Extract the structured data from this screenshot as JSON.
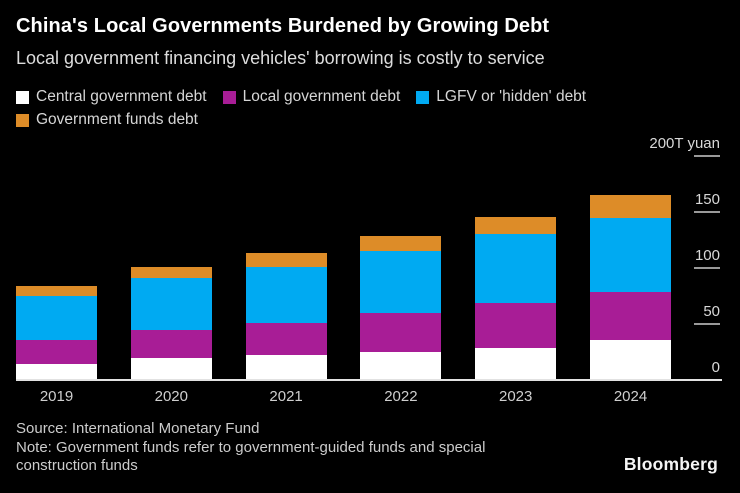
{
  "header": {
    "title": "China's Local Governments Burdened by Growing Debt",
    "subtitle": "Local government financing vehicles' borrowing is costly to service"
  },
  "legend": [
    {
      "label": "Central government debt",
      "color": "#ffffff"
    },
    {
      "label": "Local government debt",
      "color": "#a81d96"
    },
    {
      "label": "LGFV or 'hidden' debt",
      "color": "#00aaf2"
    },
    {
      "label": "Government funds debt",
      "color": "#dd8c28"
    }
  ],
  "chart_data": {
    "type": "bar",
    "stacked": true,
    "title": "China's Local Governments Burdened by Growing Debt",
    "subtitle": "Local government financing vehicles' borrowing is costly to service",
    "unit": "T yuan",
    "categories": [
      "2019",
      "2020",
      "2021",
      "2022",
      "2023",
      "2024"
    ],
    "series": [
      {
        "name": "Central government debt",
        "color": "#ffffff",
        "values": [
          14,
          20,
          22,
          25,
          29,
          36
        ]
      },
      {
        "name": "Local government debt",
        "color": "#a81d96",
        "values": [
          22,
          25,
          29,
          35,
          40,
          43
        ]
      },
      {
        "name": "LGFV or 'hidden' debt",
        "color": "#00aaf2",
        "values": [
          39,
          46,
          50,
          55,
          61,
          66
        ]
      },
      {
        "name": "Government funds debt",
        "color": "#dd8c28",
        "values": [
          9,
          10,
          12,
          14,
          16,
          20
        ]
      }
    ],
    "ylim": [
      0,
      200
    ],
    "yticks": [
      0,
      50,
      100,
      150,
      200
    ],
    "ytick_labels": [
      "0",
      "50",
      "100",
      "150",
      "200T yuan"
    ],
    "grid": false,
    "legend_position": "top"
  },
  "footer": {
    "source": "Source: International Monetary Fund",
    "note": "Note: Government funds refer to government-guided funds and special construction funds",
    "brand": "Bloomberg"
  }
}
